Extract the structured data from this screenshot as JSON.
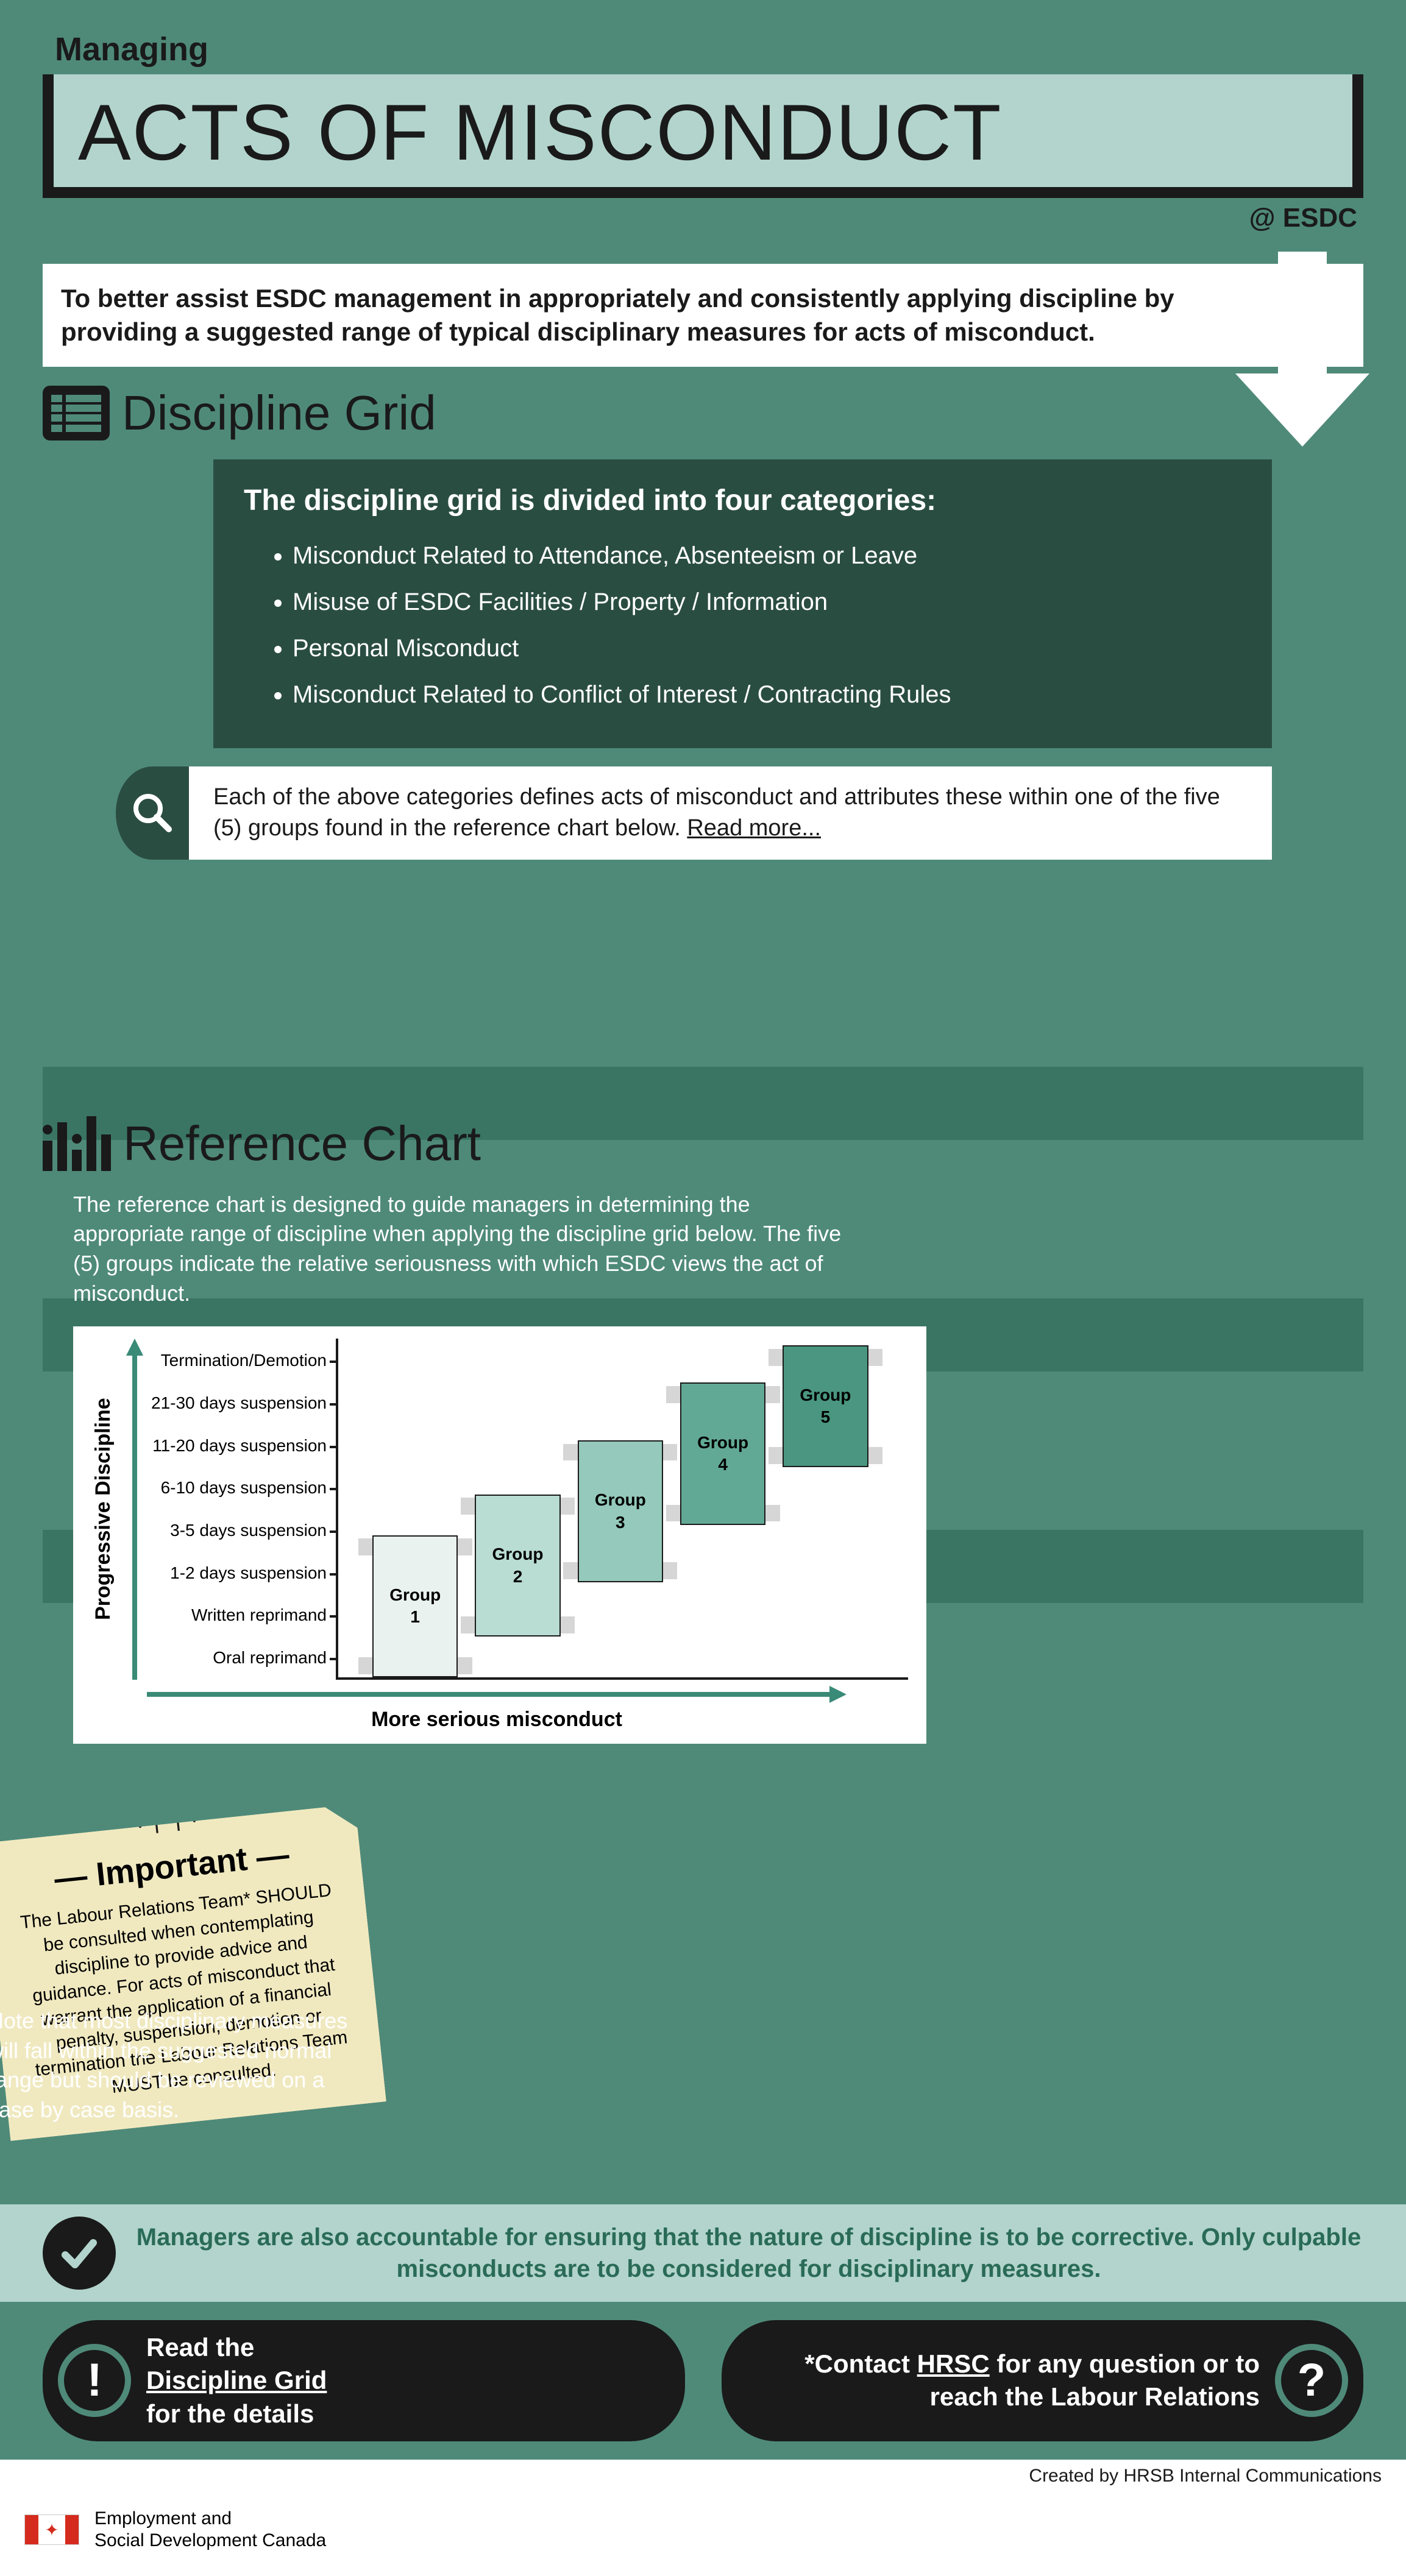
{
  "header": {
    "supertitle": "Managing",
    "title": "ACTS OF MISCONDUCT",
    "subtitle": "@ ESDC"
  },
  "purpose": "To better assist ESDC management in appropriately and consistently applying discipline by providing a suggested range of typical disciplinary measures for acts of misconduct.",
  "discipline_section": {
    "heading": "Discipline Grid",
    "categories_heading": "The discipline grid is divided into four categories:",
    "categories": [
      "Misconduct Related to Attendance, Absenteeism or Leave",
      "Misuse of ESDC Facilities / Property / Information",
      "Personal Misconduct",
      "Misconduct Related to Conflict of Interest / Contracting Rules"
    ],
    "read_more_text": "Each of the above categories defines acts of misconduct and attributes these within one of the five (5) groups found in the reference chart below.  ",
    "read_more_link": "Read more..."
  },
  "reference_section": {
    "heading": "Reference Chart",
    "description": "The reference chart is designed to guide managers in determining the appropriate range of discipline when applying the discipline grid below. The five (5) groups indicate the relative seriousness with which ESDC views the act of misconduct.",
    "chart": {
      "type": "step-bar",
      "y_axis_label": "Progressive Discipline",
      "x_axis_label": "More serious misconduct",
      "y_ticks": [
        "Termination/Demotion",
        "21-30 days suspension",
        "11-20 days suspension",
        "6-10 days suspension",
        "3-5 days suspension",
        "1-2 days suspension",
        "Written reprimand",
        "Oral reprimand"
      ],
      "axis_color": "#1a1a1a",
      "arrow_color": "#3a8a78",
      "background_color": "#ffffff",
      "shadow_color": "#d6d6d6",
      "groups": [
        {
          "label": "Group\n1",
          "color": "#eaf2f0",
          "left_pct": 6,
          "bottom_pct": 0,
          "width_pct": 15,
          "height_pct": 42
        },
        {
          "label": "Group\n2",
          "color": "#b9dcd3",
          "left_pct": 24,
          "bottom_pct": 12,
          "width_pct": 15,
          "height_pct": 42
        },
        {
          "label": "Group\n3",
          "color": "#94c9bb",
          "left_pct": 42,
          "bottom_pct": 28,
          "width_pct": 15,
          "height_pct": 42
        },
        {
          "label": "Group\n4",
          "color": "#62a995",
          "left_pct": 60,
          "bottom_pct": 45,
          "width_pct": 15,
          "height_pct": 42
        },
        {
          "label": "Group\n5",
          "color": "#4a9680",
          "left_pct": 78,
          "bottom_pct": 62,
          "width_pct": 15,
          "height_pct": 36
        }
      ]
    },
    "sticky": {
      "heading": "Important",
      "body": "The Labour Relations Team* SHOULD be consulted when contemplating discipline to provide advice and guidance. For acts of misconduct that warrant the application of a financial penalty, suspension, demotion or termination the Labour Relations Team MUST be consulted."
    },
    "note_below": "Note that most disciplinary measures will fall within the suggested normal range but should be reviewed on a case by case basis."
  },
  "corrective_banner": "Managers are also accountable for ensuring that the nature of discipline is to be corrective. Only culpable misconducts are to be considered for disciplinary measures.",
  "cta": {
    "left_pre": "Read the ",
    "left_link": "Discipline Grid",
    "left_post": " for the details",
    "right_pre": "*Contact ",
    "right_link": "HRSC",
    "right_post": " for any question or to reach the Labour Relations"
  },
  "credit": "Created by HRSB Internal Communications",
  "footer": {
    "line1": "Employment and",
    "line2": "Social Development Canada"
  },
  "colors": {
    "page_bg": "#4f8a79",
    "dark_panel": "#2a4d42",
    "light_panel": "#b2d4cc",
    "sticky": "#f0e9c0",
    "black": "#1a1a1a",
    "white": "#ffffff",
    "teal_text": "#2a6b57"
  }
}
